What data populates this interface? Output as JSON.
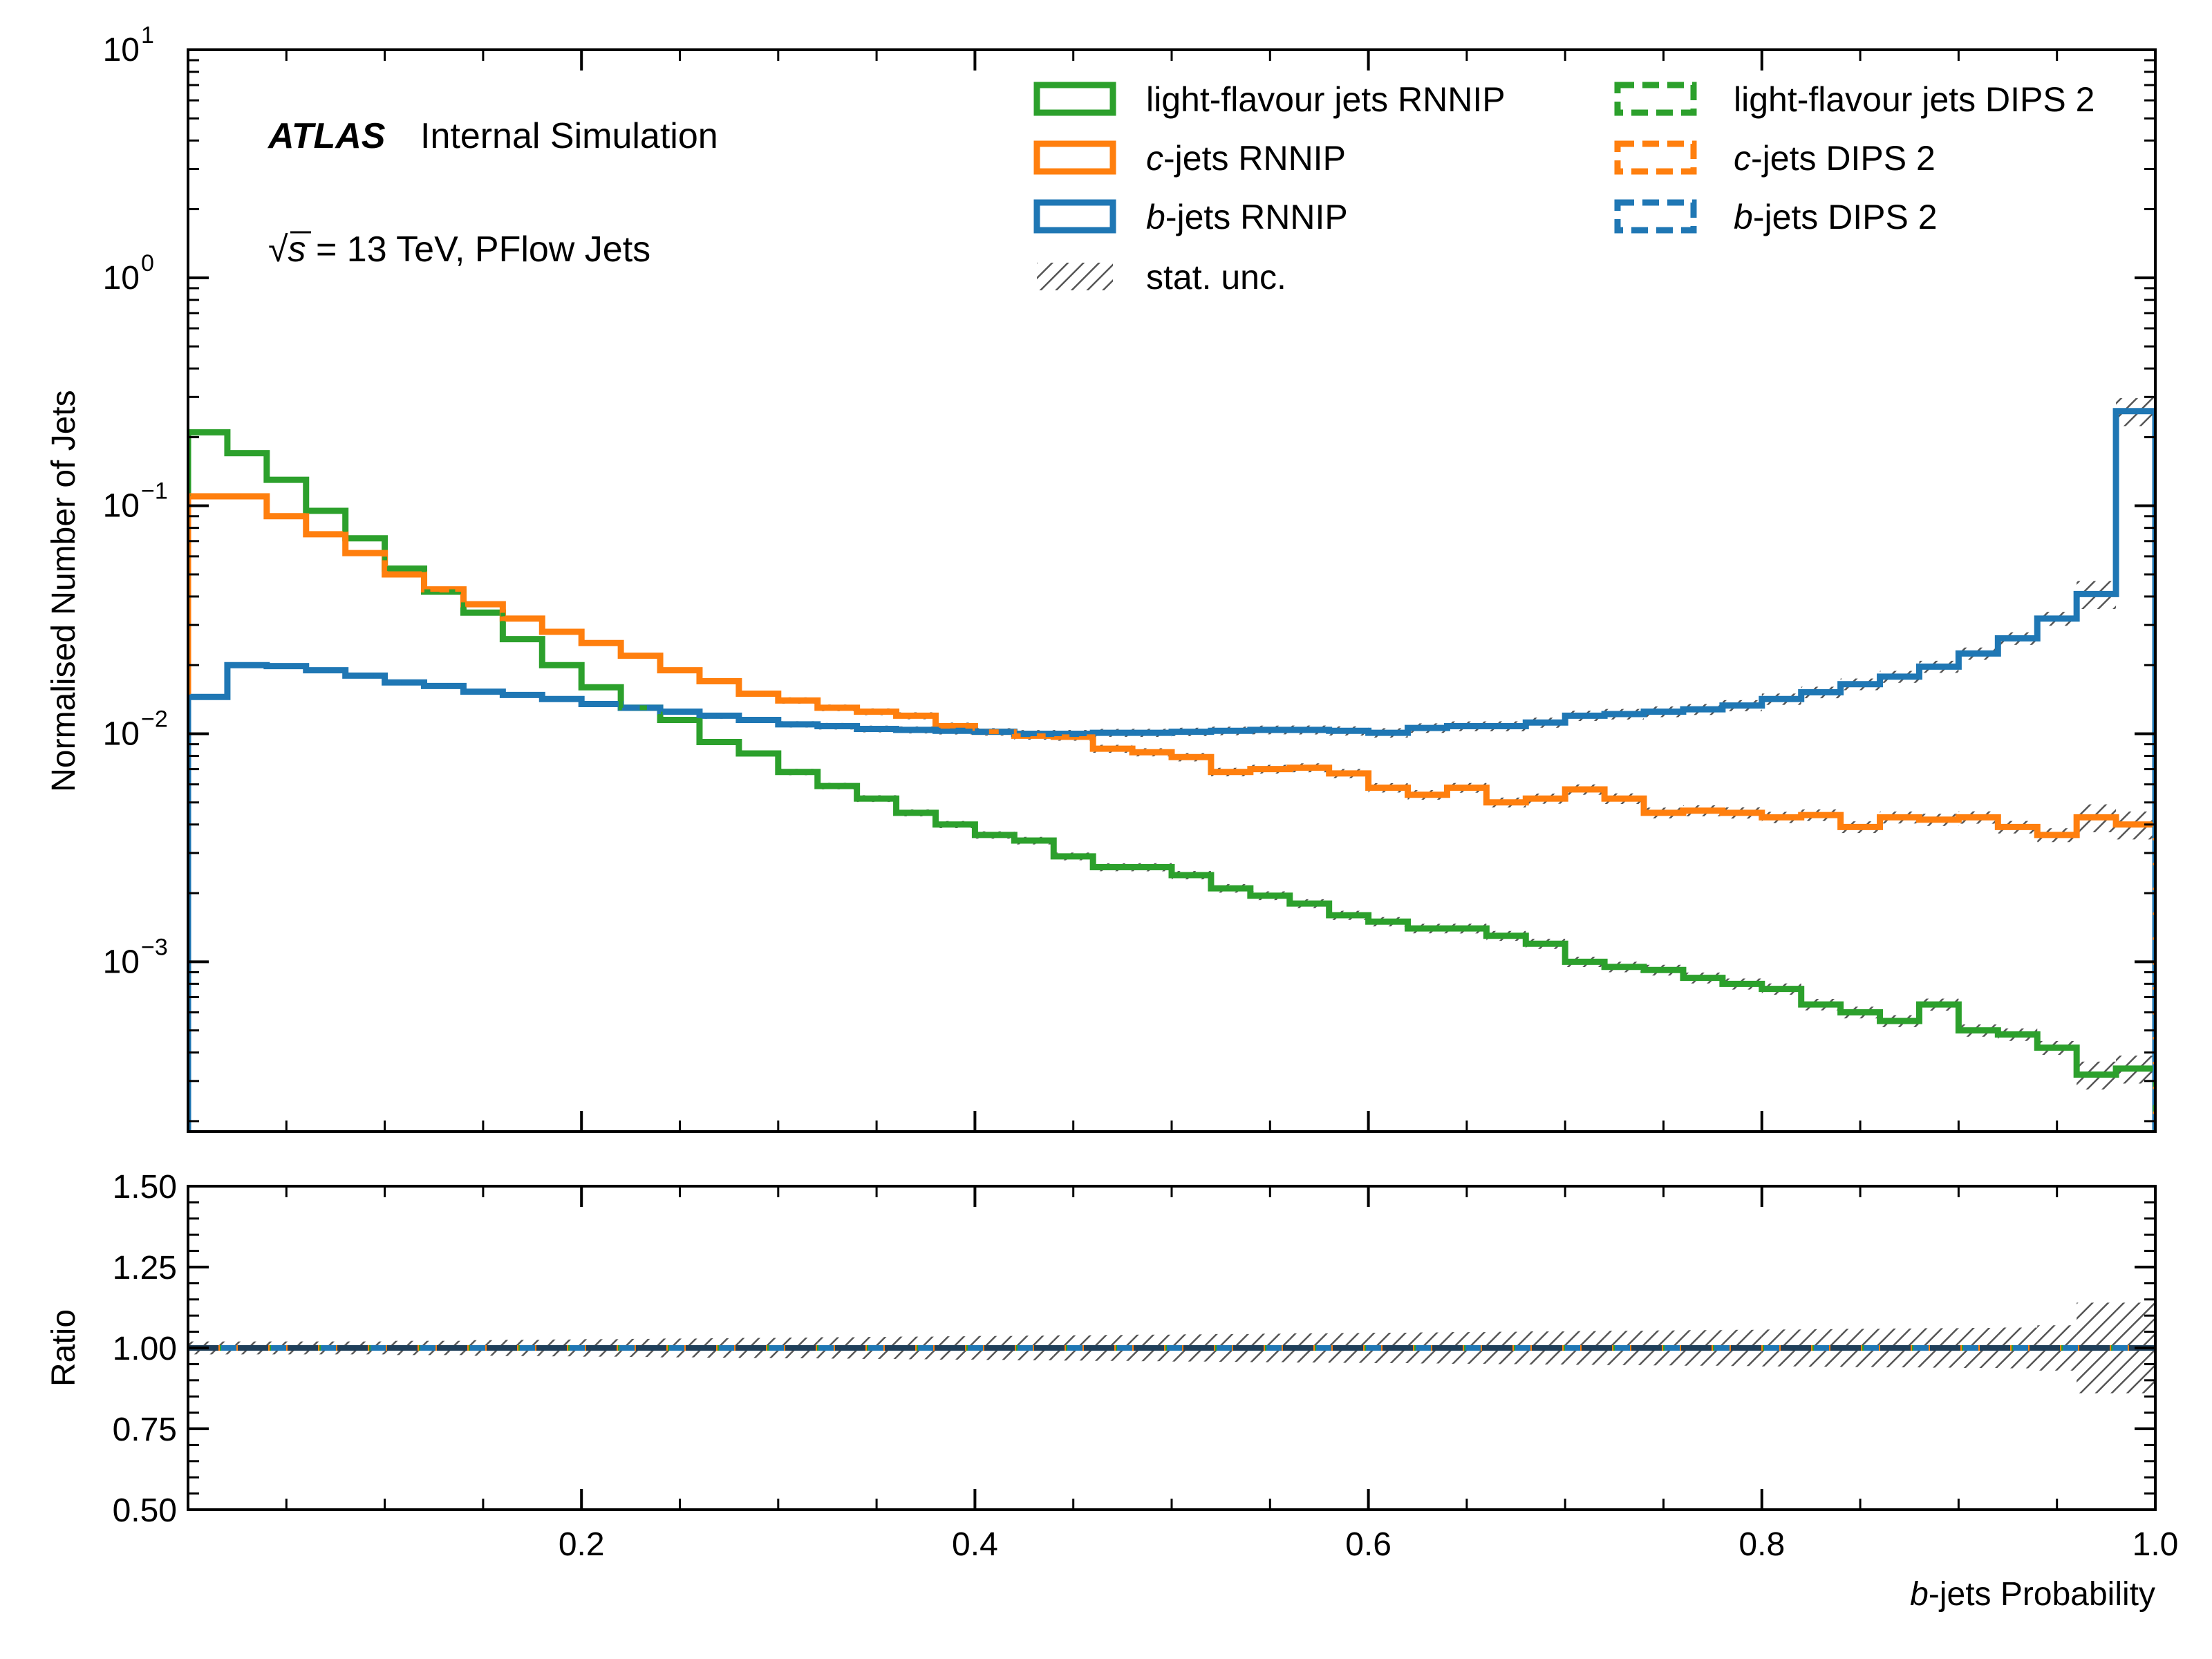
{
  "figure": {
    "atlas_label": "ATLAS",
    "atlas_status": "Internal Simulation",
    "energy_sqrt": "√",
    "energy_s": "s",
    "energy_rest": " = 13 TeV, PFlow Jets"
  },
  "chart_data": [
    {
      "type": "line",
      "panel": "main",
      "ylabel": "Normalised Number of Jets",
      "xlim": [
        0.0,
        1.0
      ],
      "ylim": [
        0.00018,
        10
      ],
      "yscale": "log",
      "y_ticks": [
        {
          "value": 10,
          "base": "10",
          "exp": "1"
        },
        {
          "value": 1,
          "base": "10",
          "exp": "0"
        },
        {
          "value": 0.1,
          "base": "10",
          "exp": "−1"
        },
        {
          "value": 0.01,
          "base": "10",
          "exp": "−2"
        },
        {
          "value": 0.001,
          "base": "10",
          "exp": "−3"
        }
      ],
      "bin_edges": [
        0.0,
        0.02,
        0.04,
        0.06,
        0.08,
        0.1,
        0.12,
        0.14,
        0.16,
        0.18,
        0.2,
        0.22,
        0.24,
        0.26,
        0.28,
        0.3,
        0.32,
        0.34,
        0.36,
        0.38,
        0.4,
        0.42,
        0.44,
        0.46,
        0.48,
        0.5,
        0.52,
        0.54,
        0.56,
        0.58,
        0.6,
        0.62,
        0.64,
        0.66,
        0.68,
        0.7,
        0.72,
        0.74,
        0.76,
        0.78,
        0.8,
        0.82,
        0.84,
        0.86,
        0.88,
        0.9,
        0.92,
        0.94,
        0.96,
        0.98,
        1.0
      ],
      "series": [
        {
          "name_prefix": "light-flavour jets",
          "name_suffix": " RNNIP",
          "color": "#2ca02c",
          "style": "solid",
          "values": [
            0.21,
            0.17,
            0.13,
            0.095,
            0.072,
            0.053,
            0.042,
            0.034,
            0.026,
            0.02,
            0.016,
            0.013,
            0.0115,
            0.0092,
            0.0082,
            0.0068,
            0.0059,
            0.0052,
            0.0045,
            0.004,
            0.0036,
            0.0034,
            0.0029,
            0.0026,
            0.0026,
            0.0024,
            0.0021,
            0.00195,
            0.0018,
            0.0016,
            0.0015,
            0.0014,
            0.0014,
            0.0013,
            0.0012,
            0.001,
            0.00095,
            0.00092,
            0.00085,
            0.0008,
            0.00076,
            0.00065,
            0.0006,
            0.00055,
            0.00065,
            0.0005,
            0.00048,
            0.00042,
            0.00032,
            0.00034
          ]
        },
        {
          "name_prefix": "c",
          "name_suffix": "-jets RNNIP",
          "color": "#ff7f0e",
          "style": "solid",
          "values": [
            0.11,
            0.11,
            0.09,
            0.075,
            0.062,
            0.05,
            0.043,
            0.037,
            0.032,
            0.028,
            0.025,
            0.022,
            0.019,
            0.017,
            0.015,
            0.014,
            0.013,
            0.0125,
            0.012,
            0.0108,
            0.0102,
            0.0098,
            0.0097,
            0.0086,
            0.0083,
            0.0079,
            0.0068,
            0.007,
            0.0071,
            0.0067,
            0.0058,
            0.0054,
            0.0058,
            0.005,
            0.0052,
            0.0057,
            0.0052,
            0.0045,
            0.0046,
            0.0045,
            0.0043,
            0.0044,
            0.0039,
            0.0043,
            0.0042,
            0.0043,
            0.0039,
            0.0036,
            0.0043,
            0.004
          ]
        },
        {
          "name_prefix": "b",
          "name_suffix": "-jets RNNIP",
          "color": "#1f77b4",
          "style": "solid",
          "values": [
            0.0145,
            0.02,
            0.0198,
            0.019,
            0.018,
            0.0168,
            0.0162,
            0.0153,
            0.0148,
            0.0142,
            0.0135,
            0.013,
            0.0125,
            0.012,
            0.0115,
            0.011,
            0.0108,
            0.0105,
            0.0104,
            0.0103,
            0.0102,
            0.01,
            0.01,
            0.0101,
            0.0101,
            0.0102,
            0.0103,
            0.0104,
            0.0104,
            0.0103,
            0.0101,
            0.0106,
            0.0108,
            0.0108,
            0.0112,
            0.012,
            0.0122,
            0.0125,
            0.0128,
            0.0133,
            0.0142,
            0.0152,
            0.0165,
            0.0178,
            0.0197,
            0.0225,
            0.0262,
            0.032,
            0.041,
            0.26
          ]
        },
        {
          "name_prefix": "light-flavour jets",
          "name_suffix": " DIPS 2",
          "color": "#2ca02c",
          "style": "dashed",
          "ref": 0
        },
        {
          "name_prefix": "c",
          "name_suffix": "-jets DIPS 2",
          "color": "#ff7f0e",
          "style": "dashed",
          "ref": 1
        },
        {
          "name_prefix": "b",
          "name_suffix": "-jets DIPS 2",
          "color": "#1f77b4",
          "style": "dashed",
          "ref": 2
        }
      ],
      "uncertainty_label": "stat. unc.",
      "legend_loc": "upper right"
    },
    {
      "type": "line",
      "panel": "ratio",
      "ylabel": "Ratio",
      "xlabel_italic": "b",
      "xlabel_rest": "-jets Probability",
      "xlim": [
        0.0,
        1.0
      ],
      "ylim": [
        0.5,
        1.5
      ],
      "x_ticks": [
        "0.2",
        "0.4",
        "0.6",
        "0.8",
        "1.0"
      ],
      "y_ticks": [
        "0.50",
        "0.75",
        "1.00",
        "1.25",
        "1.50"
      ],
      "ratio_values": [
        1,
        1,
        1,
        1,
        1,
        1,
        1,
        1,
        1,
        1,
        1,
        1,
        1,
        1,
        1,
        1,
        1,
        1,
        1,
        1,
        1,
        1,
        1,
        1,
        1,
        1,
        1,
        1,
        1,
        1,
        1,
        1,
        1,
        1,
        1,
        1,
        1,
        1,
        1,
        1,
        1,
        1,
        1,
        1,
        1,
        1,
        1,
        1,
        1,
        1
      ],
      "unc_halfwidth": [
        0.02,
        0.02,
        0.02,
        0.02,
        0.02,
        0.022,
        0.022,
        0.024,
        0.025,
        0.026,
        0.027,
        0.028,
        0.029,
        0.03,
        0.031,
        0.032,
        0.033,
        0.034,
        0.035,
        0.036,
        0.037,
        0.038,
        0.039,
        0.04,
        0.041,
        0.042,
        0.043,
        0.044,
        0.045,
        0.046,
        0.047,
        0.048,
        0.049,
        0.05,
        0.051,
        0.052,
        0.053,
        0.054,
        0.055,
        0.056,
        0.057,
        0.058,
        0.059,
        0.06,
        0.061,
        0.062,
        0.063,
        0.07,
        0.14,
        0.14
      ]
    }
  ]
}
